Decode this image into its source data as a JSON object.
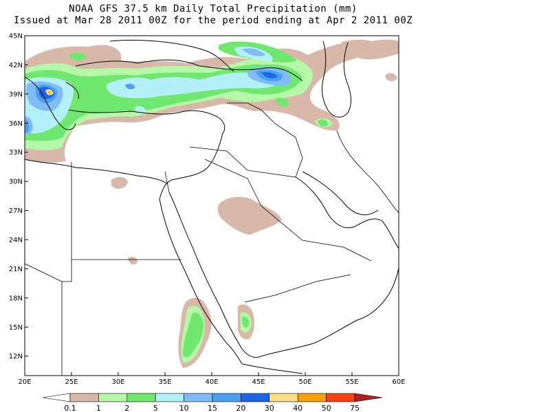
{
  "title": "NOAA GFS 37.5 km Daily Total Precipitation (mm)",
  "subtitle": "Issued at Mar 28 2011 00Z for the period ending at Apr 2 2011 00Z",
  "map": {
    "lon_range": [
      20,
      60
    ],
    "lat_range": [
      10,
      45
    ],
    "lat_ticks": [
      "45N",
      "42N",
      "39N",
      "36N",
      "33N",
      "30N",
      "27N",
      "24N",
      "21N",
      "18N",
      "15N",
      "12N"
    ],
    "lon_ticks": [
      "20E",
      "25E",
      "30E",
      "35E",
      "40E",
      "45E",
      "50E",
      "55E",
      "60E"
    ]
  },
  "colorbar": {
    "labels": [
      "0.1",
      "1",
      "2",
      "5",
      "10",
      "15",
      "20",
      "30",
      "40",
      "50",
      "75"
    ],
    "colors": [
      "#ffffff",
      "#d8b8a8",
      "#b4f8a8",
      "#70e870",
      "#b4f0f8",
      "#80bcf8",
      "#4ca0f0",
      "#1e64e8",
      "#f8e080",
      "#f8a000",
      "#f84010",
      "#b02020"
    ]
  }
}
